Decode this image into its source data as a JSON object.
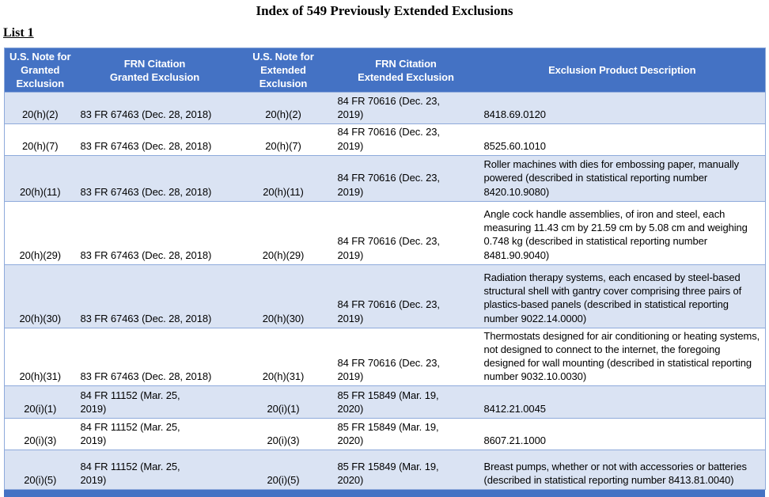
{
  "document": {
    "title": "Index of 549 Previously Extended Exclusions",
    "list_label": "List 1"
  },
  "table": {
    "colors": {
      "header_bg": "#4472C4",
      "header_text": "#FFFFFF",
      "band_bg": "#DAE3F3",
      "border": "#8EAADB"
    },
    "headers": [
      "U.S. Note for\nGranted\nExclusion",
      "FRN Citation\nGranted Exclusion",
      "U.S. Note for\nExtended\nExclusion",
      "FRN Citation\nExtended Exclusion",
      "Exclusion Product Description"
    ],
    "rows": [
      {
        "granted_note": "20(h)(2)",
        "granted_frn": "83 FR 67463 (Dec. 28, 2018)",
        "extended_note": "20(h)(2)",
        "extended_frn": "84 FR 70616 (Dec. 23,\n2019)",
        "description": "8418.69.0120"
      },
      {
        "granted_note": "20(h)(7)",
        "granted_frn": "83 FR 67463 (Dec. 28, 2018)",
        "extended_note": "20(h)(7)",
        "extended_frn": "84 FR 70616 (Dec. 23,\n2019)",
        "description": "8525.60.1010"
      },
      {
        "granted_note": "20(h)(11)",
        "granted_frn": "83 FR 67463 (Dec. 28, 2018)",
        "extended_note": "20(h)(11)",
        "extended_frn": "84 FR 70616 (Dec. 23,\n2019)",
        "description": "Roller machines with dies for embossing paper, manually powered (described in statistical reporting number 8420.10.9080)"
      },
      {
        "granted_note": "20(h)(29)",
        "granted_frn": "83 FR 67463 (Dec. 28, 2018)",
        "extended_note": "20(h)(29)",
        "extended_frn": "84 FR 70616 (Dec. 23,\n2019)",
        "description": "Angle cock handle assemblies, of iron and steel, each measuring 11.43 cm by 21.59 cm by 5.08 cm and weighing 0.748 kg (described in statistical reporting number 8481.90.9040)"
      },
      {
        "granted_note": "20(h)(30)",
        "granted_frn": "83 FR 67463 (Dec. 28, 2018)",
        "extended_note": "20(h)(30)",
        "extended_frn": "84 FR 70616 (Dec. 23,\n2019)",
        "description": "Radiation therapy systems, each encased by steel-based structural shell with gantry cover comprising three pairs of plastics-based panels (described in statistical reporting number 9022.14.0000)"
      },
      {
        "granted_note": "20(h)(31)",
        "granted_frn": "83 FR 67463 (Dec. 28, 2018)",
        "extended_note": "20(h)(31)",
        "extended_frn": "84 FR 70616 (Dec. 23,\n2019)",
        "description": "Thermostats designed for air conditioning or heating systems, not designed to connect to the internet, the foregoing designed for wall mounting (described in statistical reporting number 9032.10.0030)"
      },
      {
        "granted_note": "20(i)(1)",
        "granted_frn": "84 FR 11152 (Mar. 25,\n2019)",
        "extended_note": "20(i)(1)",
        "extended_frn": "85 FR 15849 (Mar. 19,\n2020)",
        "description": "8412.21.0045"
      },
      {
        "granted_note": "20(i)(3)",
        "granted_frn": "84 FR 11152 (Mar. 25,\n2019)",
        "extended_note": "20(i)(3)",
        "extended_frn": "85 FR 15849 (Mar. 19,\n2020)",
        "description": "8607.21.1000"
      },
      {
        "granted_note": "20(i)(5)",
        "granted_frn": "84 FR 11152 (Mar. 25,\n2019)",
        "extended_note": "20(i)(5)",
        "extended_frn": "85 FR 15849 (Mar. 19,\n2020)",
        "description": "Breast pumps, whether or not with accessories or batteries (described in statistical reporting number 8413.81.0040)"
      }
    ]
  }
}
